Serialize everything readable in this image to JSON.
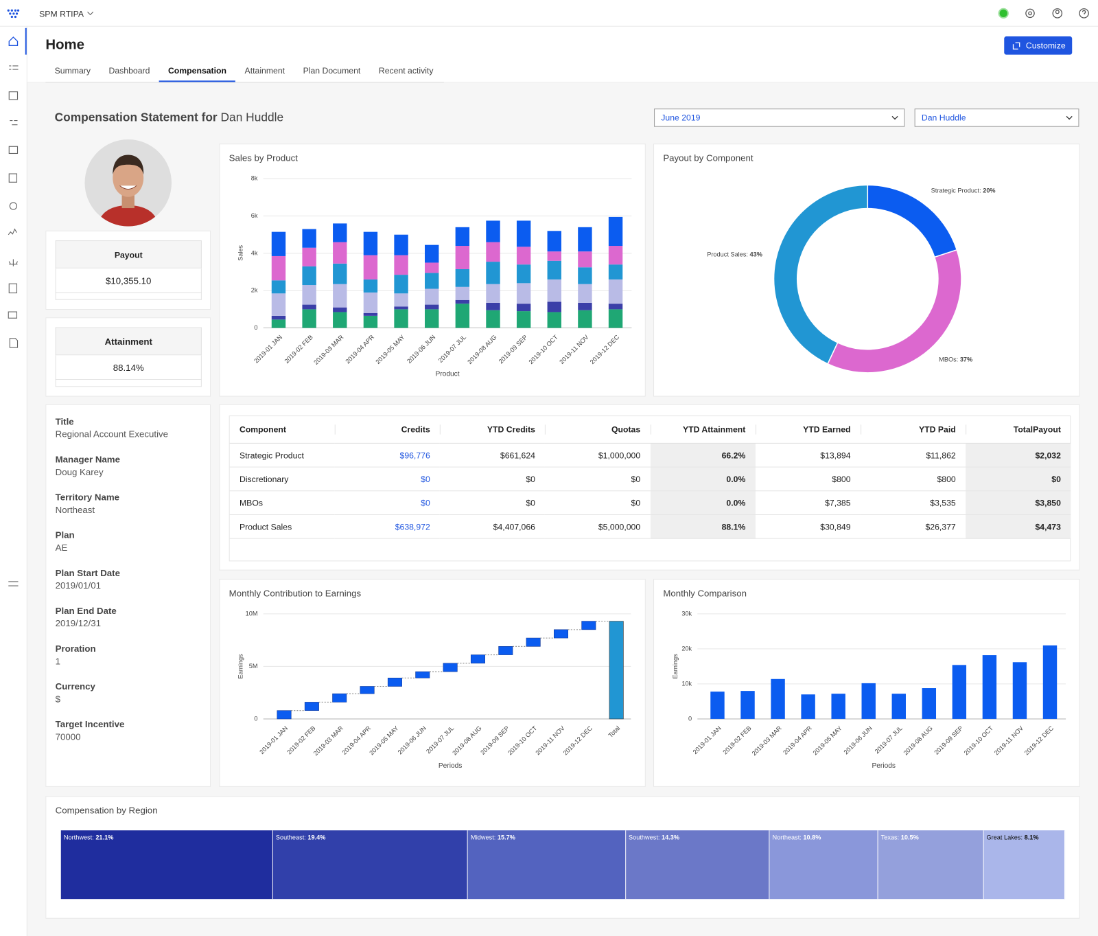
{
  "topbar": {
    "app": "SPM RTIPA"
  },
  "header": {
    "title": "Home",
    "button": "Customize",
    "tabs": [
      "Summary",
      "Dashboard",
      "Compensation",
      "Attainment",
      "Plan Document",
      "Recent activity"
    ],
    "active_tab": 2
  },
  "statement": {
    "title": "Compensation Statement for",
    "name": "Dan Huddle",
    "period": "June 2019",
    "person": "Dan Huddle"
  },
  "payout": {
    "label": "Payout",
    "value": "$10,355.10"
  },
  "attainment": {
    "label": "Attainment",
    "value": "88.14%"
  },
  "details": [
    {
      "label": "Title",
      "value": "Regional Account Executive"
    },
    {
      "label": "Manager Name",
      "value": "Doug Karey"
    },
    {
      "label": "Territory Name",
      "value": "Northeast"
    },
    {
      "label": "Plan",
      "value": "AE"
    },
    {
      "label": "Plan Start Date",
      "value": "2019/01/01"
    },
    {
      "label": "Plan End Date",
      "value": "2019/12/31"
    },
    {
      "label": "Proration",
      "value": "1"
    },
    {
      "label": "Currency",
      "value": "$"
    },
    {
      "label": "Target Incentive",
      "value": "70000"
    }
  ],
  "table": {
    "columns": [
      "Component",
      "Credits",
      "YTD Credits",
      "Quotas",
      "YTD Attainment",
      "YTD Earned",
      "YTD Paid",
      "TotalPayout"
    ],
    "rows": [
      [
        "Strategic Product",
        "$96,776",
        "$661,624",
        "$1,000,000",
        "66.2%",
        "$13,894",
        "$11,862",
        "$2,032"
      ],
      [
        "Discretionary",
        "$0",
        "$0",
        "$0",
        "0.0%",
        "$800",
        "$800",
        "$0"
      ],
      [
        "MBOs",
        "$0",
        "$0",
        "$0",
        "0.0%",
        "$7,385",
        "$3,535",
        "$3,850"
      ],
      [
        "Product Sales",
        "$638,972",
        "$4,407,066",
        "$5,000,000",
        "88.1%",
        "$30,849",
        "$26,377",
        "$4,473"
      ]
    ]
  },
  "chart_data": [
    {
      "type": "bar",
      "stacked": true,
      "title": "Sales by Product",
      "x_label": "Product",
      "y_label": "Sales",
      "categories": [
        "2019-01 JAN",
        "2019-02 FEB",
        "2019-03 MAR",
        "2019-04 APR",
        "2019-05 MAY",
        "2019-06 JUN",
        "2019-07 JUL",
        "2019-08 AUG",
        "2019-09 SEP",
        "2019-10 OCT",
        "2019-11 NOV",
        "2019-12 DEC"
      ],
      "series": [
        {
          "color": "#1fa774",
          "values": [
            450,
            1000,
            850,
            650,
            1000,
            1000,
            1300,
            950,
            900,
            850,
            950,
            1000
          ]
        },
        {
          "color": "#3b3fa8",
          "values": [
            200,
            250,
            250,
            150,
            150,
            250,
            200,
            400,
            400,
            550,
            400,
            300
          ]
        },
        {
          "color": "#b9bbe6",
          "values": [
            1200,
            1050,
            1250,
            1100,
            700,
            850,
            700,
            1000,
            1100,
            1200,
            1000,
            1300
          ]
        },
        {
          "color": "#2196d3",
          "values": [
            700,
            1000,
            1100,
            700,
            1000,
            850,
            950,
            1200,
            1000,
            1000,
            900,
            800
          ]
        },
        {
          "color": "#dc68cf",
          "values": [
            1300,
            1000,
            1150,
            1300,
            1050,
            550,
            1250,
            1050,
            950,
            500,
            850,
            1000
          ]
        },
        {
          "color": "#0b5cf0",
          "values": [
            1300,
            1000,
            1000,
            1250,
            1100,
            950,
            1000,
            1150,
            1400,
            1100,
            1300,
            1550
          ]
        }
      ],
      "ylim": [
        0,
        8000
      ],
      "yticks": [
        0,
        {
          "value": 2000,
          "label": "2k"
        },
        {
          "value": 4000,
          "label": "4k"
        },
        {
          "value": 6000,
          "label": "6k"
        },
        {
          "value": 8000,
          "label": "8k"
        }
      ],
      "grid": true
    },
    {
      "type": "pie",
      "hole": 0.75,
      "title": "Payout by Component",
      "categories": [
        "Strategic Product",
        "MBOs",
        "Product Sales"
      ],
      "values": [
        20,
        37,
        43
      ],
      "value_labels": [
        "20%",
        "37%",
        "43%"
      ],
      "colors": [
        "#0b5cf0",
        "#dc68cf",
        "#2196d3"
      ]
    },
    {
      "type": "waterfall",
      "title": "Monthly Contribution to Earnings",
      "x_label": "Periods",
      "y_label": "Earnings",
      "categories": [
        "2019-01 JAN",
        "2019-02 FEB",
        "2019-03 MAR",
        "2019-04 APR",
        "2019-05 MAY",
        "2019-06 JUN",
        "2019-07 JUL",
        "2019-08 AUG",
        "2019-09 SEP",
        "2019-10 OCT",
        "2019-11 NOV",
        "2019-12 DEC"
      ],
      "values": [
        800000,
        800000,
        800000,
        700000,
        800000,
        600000,
        800000,
        800000,
        800000,
        800000,
        800000,
        800000
      ],
      "total_label": "Total",
      "total": 9300000,
      "color": "#0b5cf0",
      "total_color": "#2196d3",
      "ylim": [
        0,
        10000000
      ],
      "yticks": [
        0,
        {
          "value": 5000000,
          "label": "5M"
        },
        {
          "value": 10000000,
          "label": "10M"
        }
      ],
      "grid": true
    },
    {
      "type": "bar",
      "stacked": false,
      "title": "Monthly Comparison",
      "x_label": "Periods",
      "y_label": "Earnings",
      "categories": [
        "2019-01 JAN",
        "2019-02 FEB",
        "2019-03 MAR",
        "2019-04 APR",
        "2019-05 MAY",
        "2019-06 JUN",
        "2019-07 JUL",
        "2019-08 AUG",
        "2019-09 SEP",
        "2019-10 OCT",
        "2019-11 NOV",
        "2019-12 DEC"
      ],
      "values": [
        7800,
        8000,
        11400,
        7000,
        7200,
        10200,
        7200,
        8800,
        15400,
        18200,
        16200,
        21000
      ],
      "color": "#0b5cf0",
      "ylim": [
        0,
        30000
      ],
      "yticks": [
        0,
        {
          "value": 10000,
          "label": "10k"
        },
        {
          "value": 20000,
          "label": "20k"
        },
        {
          "value": 30000,
          "label": "30k"
        }
      ],
      "grid": true
    },
    {
      "type": "treemap",
      "title": "Compensation by Region",
      "categories": [
        "Northwest",
        "Southeast",
        "Midwest",
        "Southwest",
        "Northeast",
        "Texas",
        "Great Lakes"
      ],
      "values": [
        21.1,
        19.4,
        15.7,
        14.3,
        10.8,
        10.5,
        8.1
      ],
      "value_labels": [
        "21.1%",
        "19.4%",
        "15.7%",
        "14.3%",
        "10.8%",
        "10.5%",
        "8.1%"
      ],
      "colors": [
        "#1f2d9e",
        "#3140aa",
        "#5363bf",
        "#6b78c8",
        "#8a97da",
        "#94a0dc",
        "#aab6ea"
      ]
    }
  ]
}
